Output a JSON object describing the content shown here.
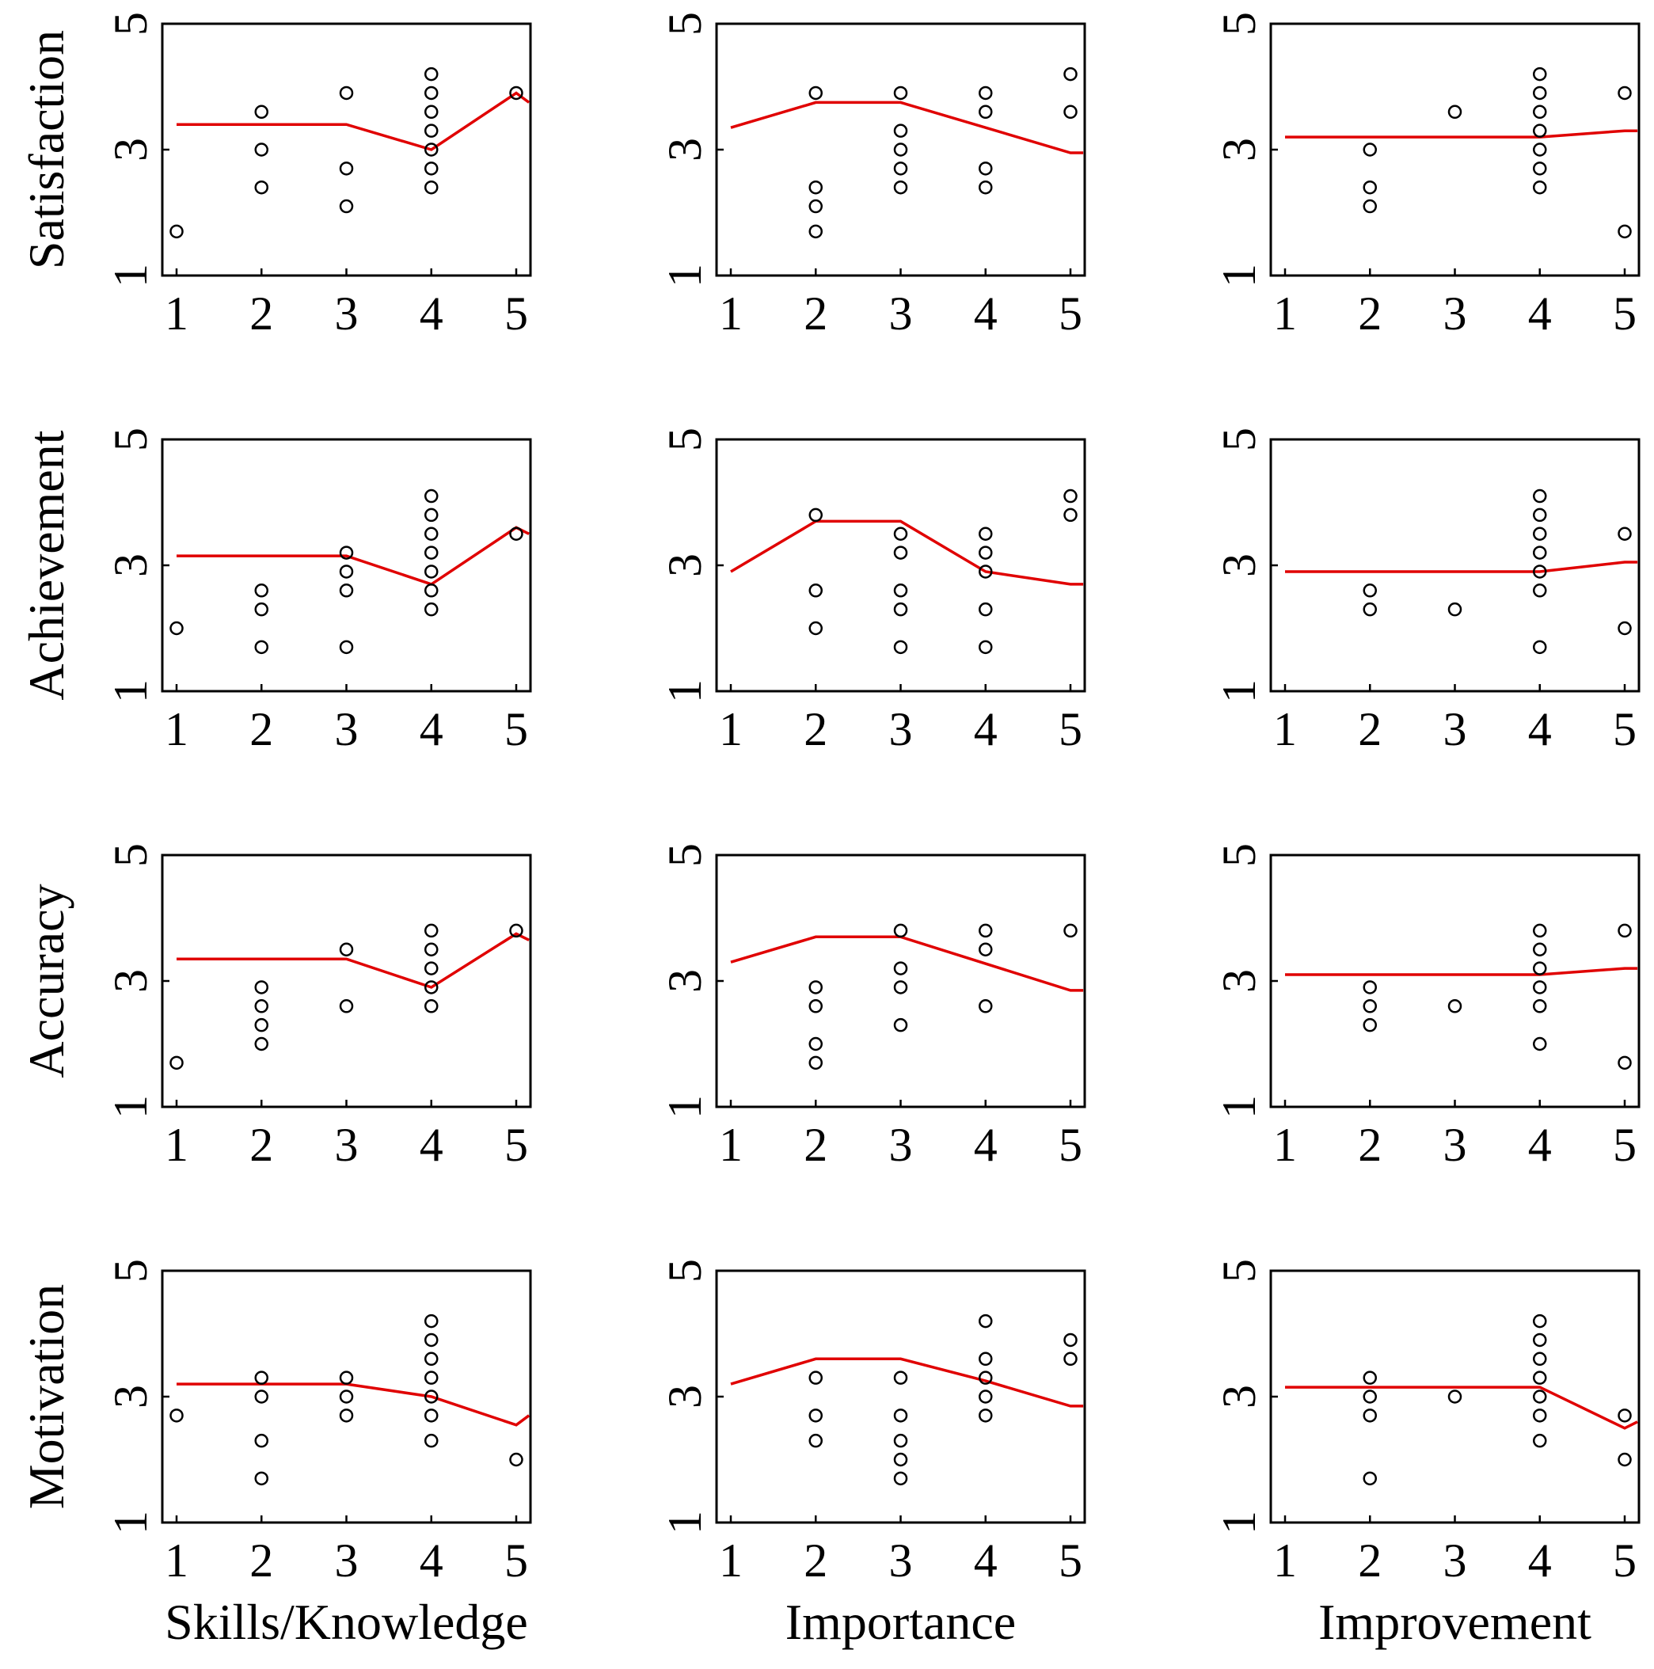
{
  "chart_data": {
    "type": "scatter",
    "layout": "grid",
    "columns": [
      "Skills/Knowledge",
      "Importance",
      "Improvement"
    ],
    "rows": [
      "Satisfaction",
      "Achievement",
      "Accuracy",
      "Motivation"
    ],
    "xlim": [
      1,
      5
    ],
    "ylim": [
      1,
      5
    ],
    "xticks": [
      "1",
      "2",
      "3",
      "4",
      "5"
    ],
    "yticks": [
      "1",
      "3",
      "5"
    ],
    "grid": false,
    "line_color": "#e00000",
    "marker_color": "#000000",
    "panels": [
      {
        "row": "Satisfaction",
        "col": "Skills/Knowledge",
        "points": [
          [
            1,
            1.7
          ],
          [
            2,
            2.4
          ],
          [
            2,
            3.0
          ],
          [
            2,
            3.6
          ],
          [
            3,
            2.1
          ],
          [
            3,
            2.7
          ],
          [
            3,
            3.9
          ],
          [
            4,
            2.4
          ],
          [
            4,
            2.7
          ],
          [
            4,
            3.0
          ],
          [
            4,
            3.3
          ],
          [
            4,
            3.6
          ],
          [
            4,
            3.9
          ],
          [
            4,
            4.2
          ],
          [
            5,
            3.9
          ]
        ],
        "line": [
          [
            1,
            3.4
          ],
          [
            3,
            3.4
          ],
          [
            4,
            3.0
          ],
          [
            5,
            3.9
          ],
          [
            5.15,
            3.75
          ]
        ]
      },
      {
        "row": "Satisfaction",
        "col": "Importance",
        "points": [
          [
            2,
            1.7
          ],
          [
            2,
            2.1
          ],
          [
            2,
            2.4
          ],
          [
            2,
            3.9
          ],
          [
            3,
            2.4
          ],
          [
            3,
            2.7
          ],
          [
            3,
            3.0
          ],
          [
            3,
            3.3
          ],
          [
            3,
            3.9
          ],
          [
            4,
            2.4
          ],
          [
            4,
            2.7
          ],
          [
            4,
            3.6
          ],
          [
            4,
            3.9
          ],
          [
            5,
            3.6
          ],
          [
            5,
            4.2
          ]
        ],
        "line": [
          [
            1,
            3.35
          ],
          [
            2,
            3.75
          ],
          [
            3,
            3.75
          ],
          [
            5,
            2.95
          ],
          [
            5.15,
            2.95
          ]
        ]
      },
      {
        "row": "Satisfaction",
        "col": "Improvement",
        "points": [
          [
            2,
            2.1
          ],
          [
            2,
            2.4
          ],
          [
            2,
            3.0
          ],
          [
            3,
            3.6
          ],
          [
            4,
            2.4
          ],
          [
            4,
            2.7
          ],
          [
            4,
            3.0
          ],
          [
            4,
            3.3
          ],
          [
            4,
            3.6
          ],
          [
            4,
            3.9
          ],
          [
            4,
            4.2
          ],
          [
            5,
            1.7
          ],
          [
            5,
            3.9
          ]
        ],
        "line": [
          [
            1,
            3.2
          ],
          [
            4,
            3.2
          ],
          [
            5,
            3.3
          ],
          [
            5.15,
            3.3
          ]
        ]
      },
      {
        "row": "Achievement",
        "col": "Skills/Knowledge",
        "points": [
          [
            1,
            2.0
          ],
          [
            2,
            1.7
          ],
          [
            2,
            2.3
          ],
          [
            2,
            2.6
          ],
          [
            3,
            1.7
          ],
          [
            3,
            2.6
          ],
          [
            3,
            2.9
          ],
          [
            3,
            3.2
          ],
          [
            4,
            2.3
          ],
          [
            4,
            2.6
          ],
          [
            4,
            2.9
          ],
          [
            4,
            3.2
          ],
          [
            4,
            3.5
          ],
          [
            4,
            3.8
          ],
          [
            4,
            4.1
          ],
          [
            5,
            3.5
          ]
        ],
        "line": [
          [
            1,
            3.15
          ],
          [
            3,
            3.15
          ],
          [
            4,
            2.7
          ],
          [
            5,
            3.6
          ],
          [
            5.15,
            3.5
          ]
        ]
      },
      {
        "row": "Achievement",
        "col": "Importance",
        "points": [
          [
            2,
            2.0
          ],
          [
            2,
            2.6
          ],
          [
            2,
            3.8
          ],
          [
            3,
            1.7
          ],
          [
            3,
            2.3
          ],
          [
            3,
            2.6
          ],
          [
            3,
            3.2
          ],
          [
            3,
            3.5
          ],
          [
            4,
            1.7
          ],
          [
            4,
            2.3
          ],
          [
            4,
            2.9
          ],
          [
            4,
            3.2
          ],
          [
            4,
            3.5
          ],
          [
            5,
            3.8
          ],
          [
            5,
            4.1
          ]
        ],
        "line": [
          [
            1,
            2.9
          ],
          [
            2,
            3.7
          ],
          [
            3,
            3.7
          ],
          [
            4,
            2.9
          ],
          [
            5,
            2.7
          ],
          [
            5.15,
            2.7
          ]
        ]
      },
      {
        "row": "Achievement",
        "col": "Improvement",
        "points": [
          [
            2,
            2.3
          ],
          [
            2,
            2.6
          ],
          [
            3,
            2.3
          ],
          [
            4,
            1.7
          ],
          [
            4,
            2.6
          ],
          [
            4,
            2.9
          ],
          [
            4,
            3.2
          ],
          [
            4,
            3.5
          ],
          [
            4,
            3.8
          ],
          [
            4,
            4.1
          ],
          [
            5,
            2.0
          ],
          [
            5,
            3.5
          ]
        ],
        "line": [
          [
            1,
            2.9
          ],
          [
            4,
            2.9
          ],
          [
            5,
            3.05
          ],
          [
            5.15,
            3.05
          ]
        ]
      },
      {
        "row": "Accuracy",
        "col": "Skills/Knowledge",
        "points": [
          [
            1,
            1.7
          ],
          [
            2,
            2.0
          ],
          [
            2,
            2.3
          ],
          [
            2,
            2.6
          ],
          [
            2,
            2.9
          ],
          [
            3,
            2.6
          ],
          [
            3,
            3.5
          ],
          [
            4,
            2.6
          ],
          [
            4,
            2.9
          ],
          [
            4,
            3.2
          ],
          [
            4,
            3.5
          ],
          [
            4,
            3.8
          ],
          [
            5,
            3.8
          ]
        ],
        "line": [
          [
            1,
            3.35
          ],
          [
            3,
            3.35
          ],
          [
            4,
            2.9
          ],
          [
            5,
            3.75
          ],
          [
            5.15,
            3.65
          ]
        ]
      },
      {
        "row": "Accuracy",
        "col": "Importance",
        "points": [
          [
            2,
            1.7
          ],
          [
            2,
            2.0
          ],
          [
            2,
            2.6
          ],
          [
            2,
            2.9
          ],
          [
            3,
            2.3
          ],
          [
            3,
            2.9
          ],
          [
            3,
            3.2
          ],
          [
            3,
            3.8
          ],
          [
            4,
            2.6
          ],
          [
            4,
            3.5
          ],
          [
            4,
            3.8
          ],
          [
            5,
            3.8
          ]
        ],
        "line": [
          [
            1,
            3.3
          ],
          [
            2,
            3.7
          ],
          [
            3,
            3.7
          ],
          [
            5,
            2.85
          ],
          [
            5.15,
            2.85
          ]
        ]
      },
      {
        "row": "Accuracy",
        "col": "Improvement",
        "points": [
          [
            2,
            2.3
          ],
          [
            2,
            2.6
          ],
          [
            2,
            2.9
          ],
          [
            3,
            2.6
          ],
          [
            4,
            2.0
          ],
          [
            4,
            2.6
          ],
          [
            4,
            2.9
          ],
          [
            4,
            3.2
          ],
          [
            4,
            3.5
          ],
          [
            4,
            3.8
          ],
          [
            5,
            1.7
          ],
          [
            5,
            3.8
          ]
        ],
        "line": [
          [
            1,
            3.1
          ],
          [
            4,
            3.1
          ],
          [
            5,
            3.2
          ],
          [
            5.15,
            3.2
          ]
        ]
      },
      {
        "row": "Motivation",
        "col": "Skills/Knowledge",
        "points": [
          [
            1,
            2.7
          ],
          [
            2,
            1.7
          ],
          [
            2,
            2.3
          ],
          [
            2,
            3.0
          ],
          [
            2,
            3.3
          ],
          [
            3,
            2.7
          ],
          [
            3,
            3.0
          ],
          [
            3,
            3.3
          ],
          [
            4,
            2.3
          ],
          [
            4,
            2.7
          ],
          [
            4,
            3.0
          ],
          [
            4,
            3.3
          ],
          [
            4,
            3.6
          ],
          [
            4,
            3.9
          ],
          [
            4,
            4.2
          ],
          [
            5,
            2.0
          ]
        ],
        "line": [
          [
            1,
            3.2
          ],
          [
            3,
            3.2
          ],
          [
            4,
            3.0
          ],
          [
            5,
            2.55
          ],
          [
            5.15,
            2.7
          ]
        ]
      },
      {
        "row": "Motivation",
        "col": "Importance",
        "points": [
          [
            2,
            2.3
          ],
          [
            2,
            2.7
          ],
          [
            2,
            3.3
          ],
          [
            3,
            1.7
          ],
          [
            3,
            2.0
          ],
          [
            3,
            2.3
          ],
          [
            3,
            2.7
          ],
          [
            3,
            3.3
          ],
          [
            4,
            2.7
          ],
          [
            4,
            3.0
          ],
          [
            4,
            3.3
          ],
          [
            4,
            3.6
          ],
          [
            4,
            4.2
          ],
          [
            5,
            3.6
          ],
          [
            5,
            3.9
          ]
        ],
        "line": [
          [
            1,
            3.2
          ],
          [
            2,
            3.6
          ],
          [
            3,
            3.6
          ],
          [
            4,
            3.25
          ],
          [
            5,
            2.85
          ],
          [
            5.15,
            2.85
          ]
        ]
      },
      {
        "row": "Motivation",
        "col": "Improvement",
        "points": [
          [
            2,
            1.7
          ],
          [
            2,
            2.7
          ],
          [
            2,
            3.0
          ],
          [
            2,
            3.3
          ],
          [
            3,
            3.0
          ],
          [
            4,
            2.3
          ],
          [
            4,
            2.7
          ],
          [
            4,
            3.0
          ],
          [
            4,
            3.3
          ],
          [
            4,
            3.6
          ],
          [
            4,
            3.9
          ],
          [
            4,
            4.2
          ],
          [
            5,
            2.0
          ],
          [
            5,
            2.7
          ]
        ],
        "line": [
          [
            1,
            3.15
          ],
          [
            4,
            3.15
          ],
          [
            5,
            2.5
          ],
          [
            5.15,
            2.6
          ]
        ]
      }
    ]
  }
}
